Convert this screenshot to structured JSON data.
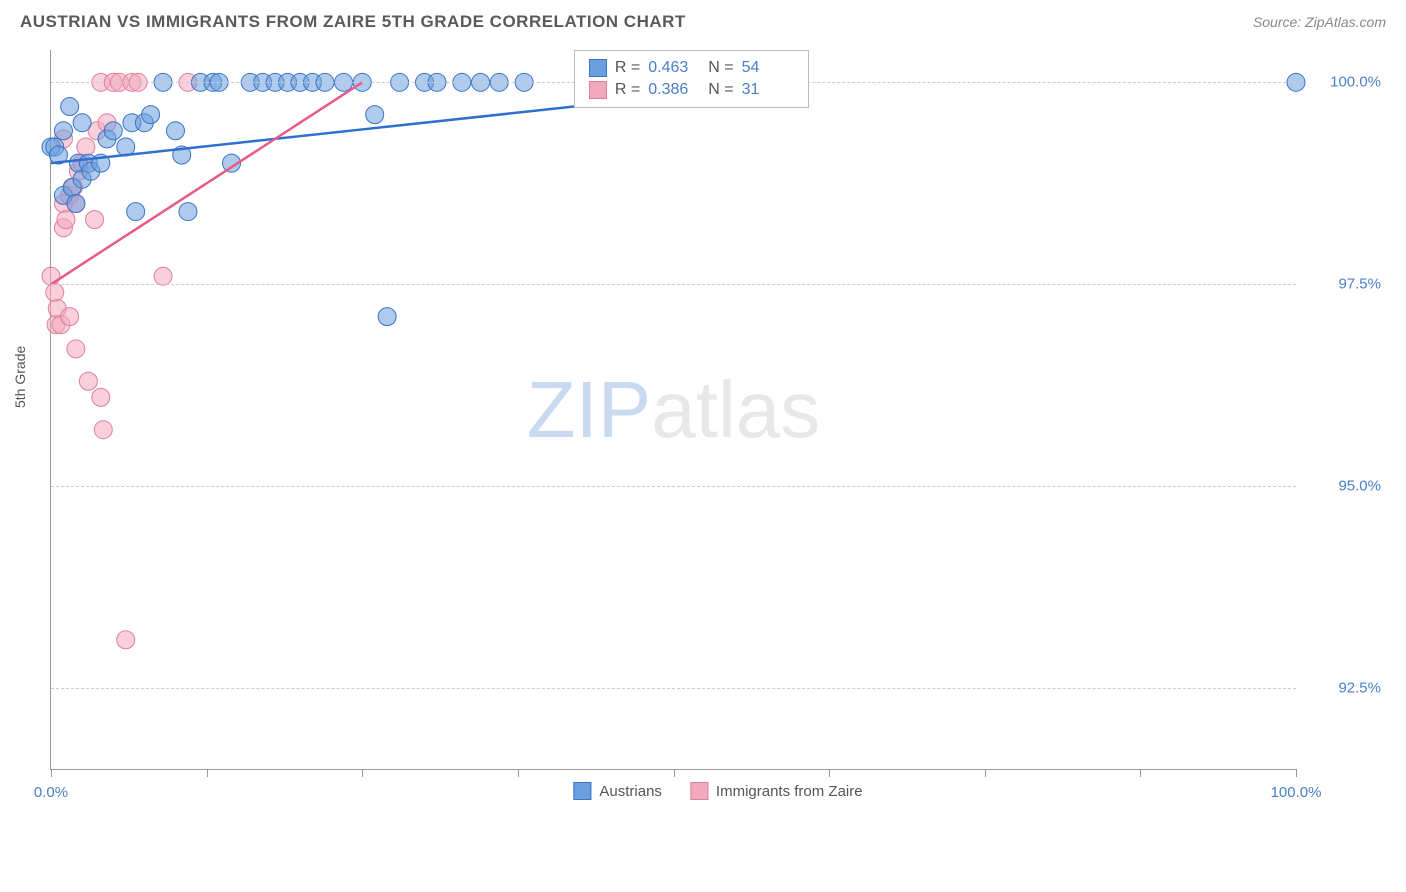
{
  "title": "AUSTRIAN VS IMMIGRANTS FROM ZAIRE 5TH GRADE CORRELATION CHART",
  "source": "Source: ZipAtlas.com",
  "ylabel": "5th Grade",
  "watermark": {
    "zip": "ZIP",
    "atlas": "atlas"
  },
  "chart": {
    "type": "scatter",
    "background_color": "#ffffff",
    "grid_color": "#cccccc",
    "axis_color": "#999999",
    "xlim": [
      0,
      100
    ],
    "ylim": [
      91.5,
      100.4
    ],
    "yticks": [
      92.5,
      95.0,
      97.5,
      100.0
    ],
    "ytick_labels": [
      "92.5%",
      "95.0%",
      "97.5%",
      "100.0%"
    ],
    "xticks": [
      0,
      12.5,
      25,
      37.5,
      50,
      62.5,
      75,
      87.5,
      100
    ],
    "xtick_labels": {
      "0": "0.0%",
      "100": "100.0%"
    },
    "marker_radius": 9,
    "marker_opacity": 0.55,
    "line_width": 2.5,
    "series": [
      {
        "name": "Austrians",
        "color": "#6b9ede",
        "stroke": "#3b74c4",
        "line_color": "#2f6fd0",
        "R": "0.463",
        "N": "54",
        "points": [
          [
            0.0,
            99.2
          ],
          [
            0.3,
            99.2
          ],
          [
            0.6,
            99.1
          ],
          [
            1.0,
            98.6
          ],
          [
            1.0,
            99.4
          ],
          [
            1.5,
            99.7
          ],
          [
            1.7,
            98.7
          ],
          [
            2.0,
            98.5
          ],
          [
            2.2,
            99.0
          ],
          [
            2.5,
            98.8
          ],
          [
            2.5,
            99.5
          ],
          [
            3.0,
            99.0
          ],
          [
            3.2,
            98.9
          ],
          [
            4.0,
            99.0
          ],
          [
            4.5,
            99.3
          ],
          [
            5.0,
            99.4
          ],
          [
            6.0,
            99.2
          ],
          [
            6.5,
            99.5
          ],
          [
            6.8,
            98.4
          ],
          [
            7.5,
            99.5
          ],
          [
            8.0,
            99.6
          ],
          [
            9.0,
            100.0
          ],
          [
            10.0,
            99.4
          ],
          [
            10.5,
            99.1
          ],
          [
            11.0,
            98.4
          ],
          [
            12.0,
            100.0
          ],
          [
            13.0,
            100.0
          ],
          [
            13.5,
            100.0
          ],
          [
            14.5,
            99.0
          ],
          [
            16.0,
            100.0
          ],
          [
            17.0,
            100.0
          ],
          [
            18.0,
            100.0
          ],
          [
            19.0,
            100.0
          ],
          [
            20.0,
            100.0
          ],
          [
            21.0,
            100.0
          ],
          [
            22.0,
            100.0
          ],
          [
            23.5,
            100.0
          ],
          [
            25.0,
            100.0
          ],
          [
            26.0,
            99.6
          ],
          [
            27.0,
            97.1
          ],
          [
            28.0,
            100.0
          ],
          [
            30.0,
            100.0
          ],
          [
            31.0,
            100.0
          ],
          [
            33.0,
            100.0
          ],
          [
            34.5,
            100.0
          ],
          [
            36.0,
            100.0
          ],
          [
            38.0,
            100.0
          ],
          [
            44.0,
            100.0
          ],
          [
            45.0,
            100.0
          ],
          [
            47.0,
            100.0
          ],
          [
            48.0,
            100.0
          ],
          [
            50.0,
            100.0
          ],
          [
            55.0,
            100.0
          ],
          [
            100.0,
            100.0
          ]
        ],
        "trendline": [
          [
            0,
            99.0
          ],
          [
            60,
            100.0
          ]
        ]
      },
      {
        "name": "Immigrants from Zaire",
        "color": "#f2a8be",
        "stroke": "#e0809d",
        "line_color": "#e85a8a",
        "R": "0.386",
        "N": "31",
        "points": [
          [
            0.0,
            97.6
          ],
          [
            0.3,
            97.4
          ],
          [
            0.4,
            97.0
          ],
          [
            0.5,
            97.2
          ],
          [
            0.8,
            97.0
          ],
          [
            1.0,
            98.2
          ],
          [
            1.0,
            98.5
          ],
          [
            1.0,
            99.3
          ],
          [
            1.2,
            98.3
          ],
          [
            1.5,
            97.1
          ],
          [
            1.5,
            98.6
          ],
          [
            1.8,
            98.7
          ],
          [
            2.0,
            96.7
          ],
          [
            2.0,
            98.5
          ],
          [
            2.2,
            98.9
          ],
          [
            2.5,
            99.0
          ],
          [
            2.8,
            99.2
          ],
          [
            3.0,
            96.3
          ],
          [
            3.5,
            98.3
          ],
          [
            3.7,
            99.4
          ],
          [
            4.0,
            96.1
          ],
          [
            4.2,
            95.7
          ],
          [
            4.0,
            100.0
          ],
          [
            4.5,
            99.5
          ],
          [
            5.0,
            100.0
          ],
          [
            5.5,
            100.0
          ],
          [
            6.0,
            93.1
          ],
          [
            6.5,
            100.0
          ],
          [
            7.0,
            100.0
          ],
          [
            9.0,
            97.6
          ],
          [
            11.0,
            100.0
          ]
        ],
        "trendline": [
          [
            0,
            97.5
          ],
          [
            25,
            100.0
          ]
        ]
      }
    ]
  },
  "legend_top": {
    "r_label": "R =",
    "n_label": "N ="
  },
  "legend_bottom_labels": [
    "Austrians",
    "Immigrants from Zaire"
  ]
}
